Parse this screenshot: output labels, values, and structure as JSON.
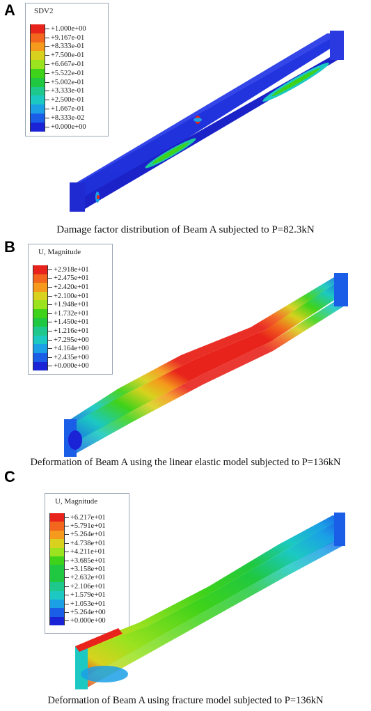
{
  "panels": [
    {
      "letter": "A",
      "legend_title": "SDV2",
      "legend_values": [
        "+1.000e+00",
        "+9.167e-01",
        "+8.333e-01",
        "+7.500e-01",
        "+6.667e-01",
        "+5.522e-01",
        "+5.002e-01",
        "+3.333e-01",
        "+2.500e-01",
        "+1.667e-01",
        "+8.333e-02",
        "+0.000e+00"
      ],
      "caption": "Damage factor distribution of Beam A subjected to P=82.3kN"
    },
    {
      "letter": "B",
      "legend_title": "U, Magnitude",
      "legend_values": [
        "+2.918e+01",
        "+2.475e+01",
        "+2.420e+01",
        "+2.100e+01",
        "+1.948e+01",
        "+1.732e+01",
        "+1.450e+01",
        "+1.216e+01",
        "+7.295e+00",
        "+4.164e+00",
        "+2.435e+00",
        "+0.000e+00"
      ],
      "caption": "Deformation of Beam A using the linear elastic model subjected to P=136kN"
    },
    {
      "letter": "C",
      "legend_title": "U, Magnitude",
      "legend_values": [
        "+6.217e+01",
        "+5.791e+01",
        "+5.264e+01",
        "+4.738e+01",
        "+4.211e+01",
        "+3.685e+01",
        "+3.158e+01",
        "+2.632e+01",
        "+2.106e+01",
        "+1.579e+01",
        "+1.053e+01",
        "+5.264e+00",
        "+0.000e+00"
      ],
      "caption": "Deformation of Beam A using fracture model subjected to P=136kN"
    }
  ],
  "colors": {
    "contour": [
      "#e8231b",
      "#f2661e",
      "#f59a1c",
      "#d8d21e",
      "#9be21f",
      "#3fd21a",
      "#1fc840",
      "#1ec78b",
      "#1cc9c2",
      "#1ba0e6",
      "#1a5ee8",
      "#1a23d6"
    ]
  }
}
